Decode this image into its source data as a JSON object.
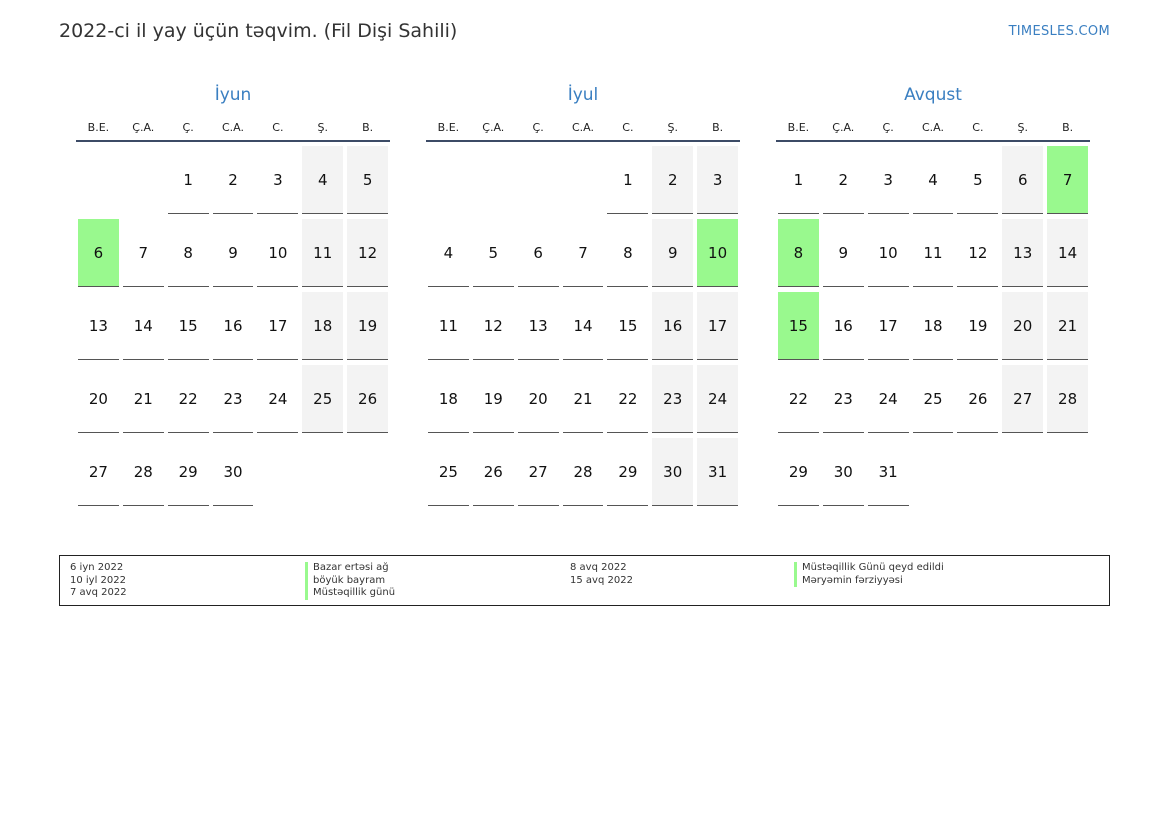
{
  "header": {
    "title": "2022-ci il yay üçün təqvim. (Fil Dişi Sahili)",
    "site": "TIMESLES.COM"
  },
  "weekdays": [
    "B.E.",
    "Ç.A.",
    "Ç.",
    "C.A.",
    "C.",
    "Ş.",
    "B."
  ],
  "months": [
    {
      "name": "İyun",
      "weeks": [
        [
          "",
          "",
          "1",
          "2",
          "3",
          "4",
          "5"
        ],
        [
          "6",
          "7",
          "8",
          "9",
          "10",
          "11",
          "12"
        ],
        [
          "13",
          "14",
          "15",
          "16",
          "17",
          "18",
          "19"
        ],
        [
          "20",
          "21",
          "22",
          "23",
          "24",
          "25",
          "26"
        ],
        [
          "27",
          "28",
          "29",
          "30",
          "",
          "",
          ""
        ]
      ],
      "holidays": [
        "6"
      ]
    },
    {
      "name": "İyul",
      "weeks": [
        [
          "",
          "",
          "",
          "",
          "1",
          "2",
          "3"
        ],
        [
          "4",
          "5",
          "6",
          "7",
          "8",
          "9",
          "10"
        ],
        [
          "11",
          "12",
          "13",
          "14",
          "15",
          "16",
          "17"
        ],
        [
          "18",
          "19",
          "20",
          "21",
          "22",
          "23",
          "24"
        ],
        [
          "25",
          "26",
          "27",
          "28",
          "29",
          "30",
          "31"
        ]
      ],
      "holidays": [
        "10"
      ]
    },
    {
      "name": "Avqust",
      "weeks": [
        [
          "1",
          "2",
          "3",
          "4",
          "5",
          "6",
          "7"
        ],
        [
          "8",
          "9",
          "10",
          "11",
          "12",
          "13",
          "14"
        ],
        [
          "15",
          "16",
          "17",
          "18",
          "19",
          "20",
          "21"
        ],
        [
          "22",
          "23",
          "24",
          "25",
          "26",
          "27",
          "28"
        ],
        [
          "29",
          "30",
          "31",
          "",
          "",
          "",
          ""
        ]
      ],
      "holidays": [
        "7",
        "8",
        "15"
      ]
    }
  ],
  "colors": {
    "holiday": "#99f98e",
    "weekend": "#f3f3f3",
    "accent": "#3a7fc1"
  },
  "legend": {
    "col1_dates": [
      "6 iyn 2022",
      "10 iyl 2022",
      "7 avq 2022"
    ],
    "col1_events": [
      "Bazar ertəsi ağ",
      "böyük bayram",
      "Müstəqillik günü"
    ],
    "col2_dates": [
      "8 avq 2022",
      "15 avq 2022"
    ],
    "col2_events": [
      "Müstəqillik Günü qeyd edildi",
      "Məryəmin fərziyyəsi"
    ]
  }
}
